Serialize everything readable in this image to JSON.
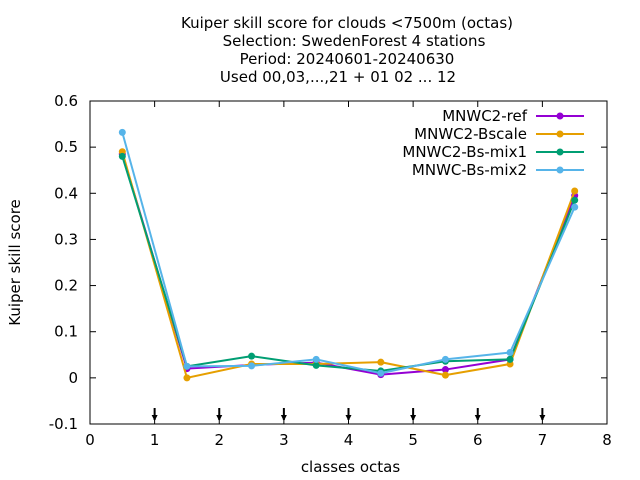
{
  "chart_data": {
    "type": "line",
    "title_lines": [
      "Kuiper skill score  for clouds <7500m (octas)",
      "Selection: SwedenForest      4 stations",
      "Period: 20240601-20240630",
      "Used 00,03,...,21 + 01 02 ... 12"
    ],
    "xlabel": "classes octas",
    "ylabel": "Kuiper skill score",
    "xlim": [
      0,
      8
    ],
    "ylim": [
      -0.1,
      0.6
    ],
    "xticks": [
      "0",
      "1",
      "2",
      "3",
      "4",
      "5",
      "6",
      "7",
      "8"
    ],
    "yticks": [
      "-0.1",
      "0",
      "0.1",
      "0.2",
      "0.3",
      "0.4",
      "0.5",
      "0.6"
    ],
    "grid": false,
    "legend_position": "top-right",
    "x": [
      0.5,
      1.5,
      2.5,
      3.5,
      4.5,
      5.5,
      6.5,
      7.5
    ],
    "series": [
      {
        "name": "MNWC2-ref",
        "color": "#9400d3",
        "values": [
          0.485,
          0.02,
          0.028,
          0.033,
          0.007,
          0.018,
          0.04,
          0.395
        ]
      },
      {
        "name": "MNWC2-Bscale",
        "color": "#e69f00",
        "values": [
          0.49,
          0.0,
          0.03,
          0.03,
          0.034,
          0.006,
          0.03,
          0.405
        ]
      },
      {
        "name": "MNWC2-Bs-mix1",
        "color": "#009e73",
        "values": [
          0.48,
          0.025,
          0.047,
          0.027,
          0.015,
          0.036,
          0.04,
          0.385
        ]
      },
      {
        "name": "MNWC-Bs-mix2",
        "color": "#56b4e9",
        "values": [
          0.532,
          0.025,
          0.026,
          0.04,
          0.01,
          0.04,
          0.055,
          0.37
        ]
      }
    ],
    "arrow_markers_x": [
      1,
      2,
      3,
      4,
      5,
      6,
      7
    ]
  }
}
